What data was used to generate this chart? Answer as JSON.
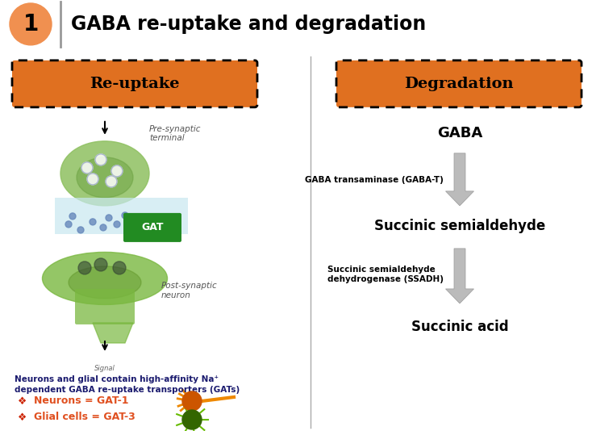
{
  "title": "GABA re-uptake and degradation",
  "title_num": "1",
  "header_bg": "#F07820",
  "header_text_color": "#000000",
  "body_bg": "#FFFFFF",
  "orange_box_color": "#E07020",
  "left_header": "Re-uptake",
  "right_header": "Degradation",
  "degradation_steps": [
    "GABA",
    "Succinic semialdehyde",
    "Succinic acid"
  ],
  "enzyme_labels": [
    "GABA transaminase (GABA-T)",
    "Succinic semialdehyde\ndehydrogenase (SSADH)"
  ],
  "arrow_color": "#BBBBBB",
  "neuron_text_line1": "Neurons and glial contain high-affinity Na⁺",
  "neuron_text_line2": "dependent GABA re-uptake transporters (GATs)",
  "neuron_label": "Neurons = GAT-1",
  "glial_label": "Glial cells = GAT-3",
  "bullet_color": "#CC2200",
  "label_color": "#E05020",
  "navy_color": "#1a1a6e",
  "enzyme_color": "#000000",
  "divider_color": "#AAAAAA"
}
